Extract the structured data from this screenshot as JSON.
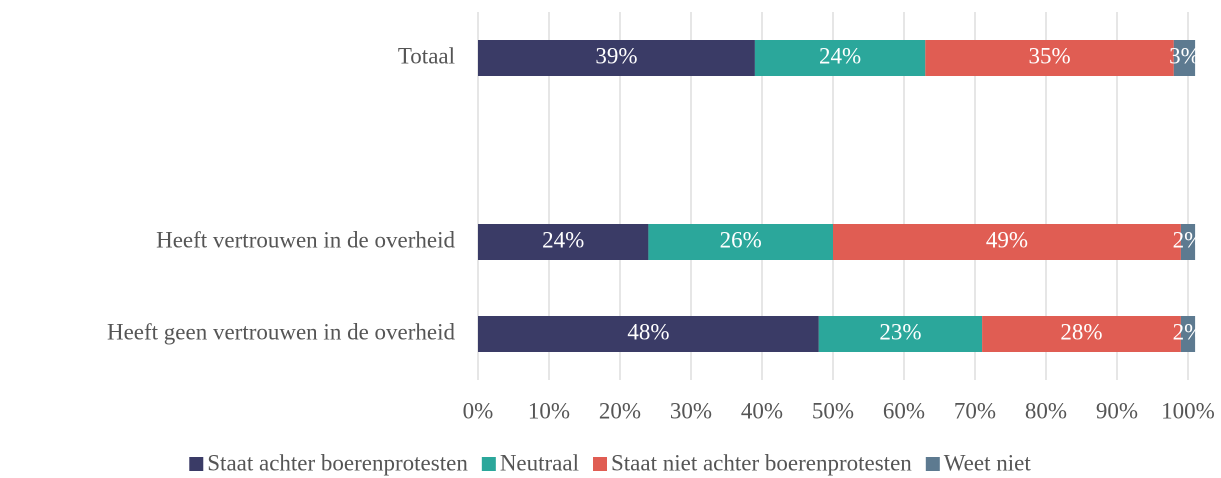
{
  "chart_data": {
    "type": "stacked_barh",
    "categories": [
      "Totaal",
      null,
      "Heeft vertrouwen in de overheid",
      "Heeft geen vertrouwen in de overheid"
    ],
    "series": [
      {
        "name": "Staat achter boerenprotesten",
        "color": "#3a3b66",
        "values": [
          39,
          null,
          24,
          48
        ],
        "value_labels": [
          "39%",
          null,
          "24%",
          "48%"
        ]
      },
      {
        "name": "Neutraal",
        "color": "#2ba79b",
        "values": [
          24,
          null,
          26,
          23
        ],
        "value_labels": [
          "24%",
          null,
          "26%",
          "23%"
        ]
      },
      {
        "name": "Staat niet achter boerenprotesten",
        "color": "#e05d53",
        "values": [
          35,
          null,
          49,
          28
        ],
        "value_labels": [
          "35%",
          null,
          "49%",
          "28%"
        ]
      },
      {
        "name": "Weet niet",
        "color": "#5d7a90",
        "values": [
          3,
          null,
          2,
          2
        ],
        "value_labels": [
          "3%",
          null,
          "2%",
          "2%"
        ]
      }
    ],
    "xlim": [
      0,
      100
    ],
    "xticks": [
      {
        "value": 0,
        "label": "0%"
      },
      {
        "value": 10,
        "label": "10%"
      },
      {
        "value": 20,
        "label": "20%"
      },
      {
        "value": 30,
        "label": "30%"
      },
      {
        "value": 40,
        "label": "40%"
      },
      {
        "value": 50,
        "label": "50%"
      },
      {
        "value": 60,
        "label": "60%"
      },
      {
        "value": 70,
        "label": "70%"
      },
      {
        "value": 80,
        "label": "80%"
      },
      {
        "value": 90,
        "label": "90%"
      },
      {
        "value": 100,
        "label": "100%"
      }
    ],
    "grid": true,
    "legend": "bottom"
  }
}
